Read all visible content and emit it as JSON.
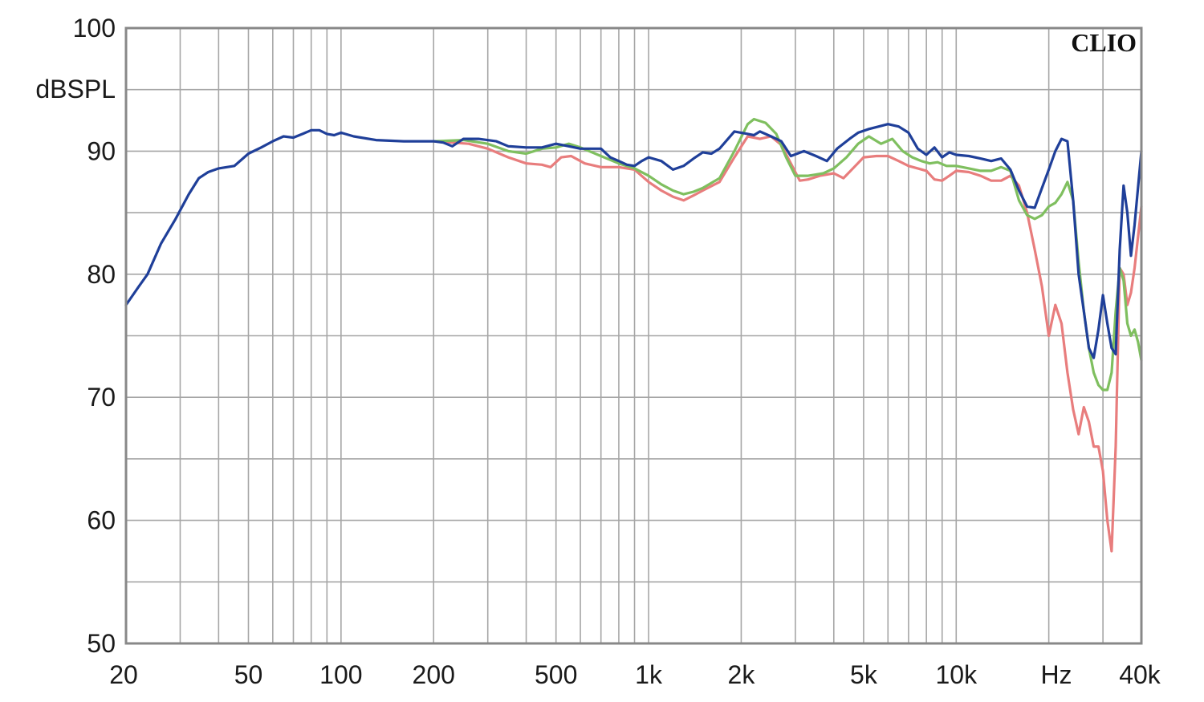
{
  "chart_data": {
    "type": "line",
    "title": "",
    "brand": "CLIO",
    "xlabel": "Hz",
    "ylabel": "dBSPL",
    "x_scale": "log",
    "xlim": [
      20,
      40000
    ],
    "ylim": [
      50,
      100
    ],
    "grid": true,
    "legend": "none",
    "x_tick_labels": [
      {
        "value": 20,
        "label": "20"
      },
      {
        "value": 50,
        "label": "50"
      },
      {
        "value": 100,
        "label": "100"
      },
      {
        "value": 200,
        "label": "200"
      },
      {
        "value": 500,
        "label": "500"
      },
      {
        "value": 1000,
        "label": "1k"
      },
      {
        "value": 2000,
        "label": "2k"
      },
      {
        "value": 5000,
        "label": "5k"
      },
      {
        "value": 10000,
        "label": "10k"
      },
      {
        "value": 40000,
        "label": "40k"
      }
    ],
    "y_tick_labels": [
      {
        "value": 100,
        "label": "100"
      },
      {
        "value": 90,
        "label": "90"
      },
      {
        "value": 80,
        "label": "80"
      },
      {
        "value": 70,
        "label": "70"
      },
      {
        "value": 60,
        "label": "60"
      },
      {
        "value": 50,
        "label": "50"
      }
    ],
    "series": [
      {
        "color": "#e87d7d",
        "points": [
          [
            200,
            90.8
          ],
          [
            230,
            90.7
          ],
          [
            260,
            90.6
          ],
          [
            300,
            90.2
          ],
          [
            350,
            89.5
          ],
          [
            400,
            89.0
          ],
          [
            450,
            88.9
          ],
          [
            480,
            88.7
          ],
          [
            520,
            89.5
          ],
          [
            560,
            89.6
          ],
          [
            620,
            89.0
          ],
          [
            700,
            88.7
          ],
          [
            800,
            88.7
          ],
          [
            900,
            88.5
          ],
          [
            1000,
            87.5
          ],
          [
            1100,
            86.8
          ],
          [
            1200,
            86.3
          ],
          [
            1300,
            86.0
          ],
          [
            1400,
            86.4
          ],
          [
            1500,
            86.8
          ],
          [
            1700,
            87.5
          ],
          [
            1900,
            89.5
          ],
          [
            2100,
            91.2
          ],
          [
            2300,
            91.0
          ],
          [
            2500,
            91.2
          ],
          [
            2700,
            90.5
          ],
          [
            2900,
            89.0
          ],
          [
            3100,
            87.6
          ],
          [
            3300,
            87.7
          ],
          [
            3600,
            88.0
          ],
          [
            4000,
            88.2
          ],
          [
            4300,
            87.8
          ],
          [
            4700,
            88.8
          ],
          [
            5000,
            89.5
          ],
          [
            5500,
            89.6
          ],
          [
            6000,
            89.6
          ],
          [
            6500,
            89.2
          ],
          [
            7000,
            88.8
          ],
          [
            7500,
            88.6
          ],
          [
            8000,
            88.4
          ],
          [
            8500,
            87.7
          ],
          [
            9000,
            87.6
          ],
          [
            9500,
            88.0
          ],
          [
            10000,
            88.4
          ],
          [
            11000,
            88.3
          ],
          [
            12000,
            88.0
          ],
          [
            13000,
            87.6
          ],
          [
            14000,
            87.6
          ],
          [
            15000,
            88.0
          ],
          [
            16000,
            87.2
          ],
          [
            17000,
            85.0
          ],
          [
            18000,
            82.0
          ],
          [
            19000,
            79.0
          ],
          [
            20000,
            75.0
          ],
          [
            21000,
            77.5
          ],
          [
            22000,
            76.0
          ],
          [
            23000,
            72.0
          ],
          [
            24000,
            69.0
          ],
          [
            25000,
            67.0
          ],
          [
            26000,
            69.2
          ],
          [
            27000,
            68.0
          ],
          [
            28000,
            66.0
          ],
          [
            29000,
            66.0
          ],
          [
            30000,
            64.0
          ],
          [
            31000,
            60.0
          ],
          [
            32000,
            57.5
          ],
          [
            33000,
            66.0
          ],
          [
            34000,
            80.5
          ],
          [
            35000,
            80.0
          ],
          [
            36000,
            77.5
          ],
          [
            37000,
            78.5
          ],
          [
            38000,
            80.5
          ],
          [
            40000,
            85.5
          ]
        ]
      },
      {
        "color": "#7fbf5f",
        "points": [
          [
            200,
            90.8
          ],
          [
            250,
            90.9
          ],
          [
            300,
            90.6
          ],
          [
            350,
            90.0
          ],
          [
            400,
            89.8
          ],
          [
            450,
            90.2
          ],
          [
            500,
            90.3
          ],
          [
            550,
            90.6
          ],
          [
            600,
            90.3
          ],
          [
            700,
            89.6
          ],
          [
            800,
            89.0
          ],
          [
            900,
            88.6
          ],
          [
            1000,
            88.0
          ],
          [
            1100,
            87.3
          ],
          [
            1200,
            86.8
          ],
          [
            1300,
            86.5
          ],
          [
            1400,
            86.7
          ],
          [
            1500,
            87.0
          ],
          [
            1700,
            87.8
          ],
          [
            1900,
            90.0
          ],
          [
            2100,
            92.2
          ],
          [
            2200,
            92.6
          ],
          [
            2400,
            92.3
          ],
          [
            2600,
            91.4
          ],
          [
            2800,
            89.5
          ],
          [
            3000,
            88.0
          ],
          [
            3300,
            88.0
          ],
          [
            3700,
            88.2
          ],
          [
            4000,
            88.6
          ],
          [
            4400,
            89.5
          ],
          [
            4800,
            90.6
          ],
          [
            5200,
            91.2
          ],
          [
            5700,
            90.6
          ],
          [
            6200,
            91.0
          ],
          [
            6700,
            90.0
          ],
          [
            7200,
            89.5
          ],
          [
            7700,
            89.2
          ],
          [
            8200,
            89.0
          ],
          [
            8700,
            89.1
          ],
          [
            9300,
            88.8
          ],
          [
            10000,
            88.8
          ],
          [
            11000,
            88.6
          ],
          [
            12000,
            88.4
          ],
          [
            13000,
            88.4
          ],
          [
            14000,
            88.7
          ],
          [
            15000,
            88.4
          ],
          [
            16000,
            86.0
          ],
          [
            17000,
            84.8
          ],
          [
            18000,
            84.5
          ],
          [
            19000,
            84.8
          ],
          [
            20000,
            85.5
          ],
          [
            21000,
            85.8
          ],
          [
            22000,
            86.5
          ],
          [
            23000,
            87.5
          ],
          [
            24000,
            86.0
          ],
          [
            25000,
            81.0
          ],
          [
            26000,
            77.0
          ],
          [
            27000,
            74.0
          ],
          [
            28000,
            72.0
          ],
          [
            29000,
            71.0
          ],
          [
            30000,
            70.6
          ],
          [
            31000,
            70.6
          ],
          [
            32000,
            72.0
          ],
          [
            33000,
            77.0
          ],
          [
            34000,
            80.5
          ],
          [
            35000,
            79.5
          ],
          [
            36000,
            76.0
          ],
          [
            37000,
            75.0
          ],
          [
            38000,
            75.5
          ],
          [
            39000,
            74.5
          ],
          [
            40000,
            73.0
          ]
        ]
      },
      {
        "color": "#1f3f99",
        "points": [
          [
            20,
            77.5
          ],
          [
            22,
            79.0
          ],
          [
            23.5,
            80.0
          ],
          [
            26,
            82.5
          ],
          [
            29,
            84.5
          ],
          [
            32,
            86.5
          ],
          [
            34.5,
            87.8
          ],
          [
            37,
            88.3
          ],
          [
            40,
            88.6
          ],
          [
            45,
            88.8
          ],
          [
            50,
            89.8
          ],
          [
            55,
            90.3
          ],
          [
            60,
            90.8
          ],
          [
            65,
            91.2
          ],
          [
            70,
            91.1
          ],
          [
            75,
            91.4
          ],
          [
            80,
            91.7
          ],
          [
            85,
            91.7
          ],
          [
            90,
            91.4
          ],
          [
            95,
            91.3
          ],
          [
            100,
            91.5
          ],
          [
            110,
            91.2
          ],
          [
            130,
            90.9
          ],
          [
            160,
            90.8
          ],
          [
            200,
            90.8
          ],
          [
            215,
            90.7
          ],
          [
            230,
            90.4
          ],
          [
            250,
            91.0
          ],
          [
            280,
            91.0
          ],
          [
            320,
            90.8
          ],
          [
            350,
            90.4
          ],
          [
            400,
            90.3
          ],
          [
            450,
            90.3
          ],
          [
            500,
            90.6
          ],
          [
            550,
            90.4
          ],
          [
            600,
            90.2
          ],
          [
            700,
            90.2
          ],
          [
            750,
            89.5
          ],
          [
            800,
            89.2
          ],
          [
            850,
            88.9
          ],
          [
            900,
            88.8
          ],
          [
            950,
            89.2
          ],
          [
            1000,
            89.5
          ],
          [
            1100,
            89.2
          ],
          [
            1200,
            88.5
          ],
          [
            1300,
            88.8
          ],
          [
            1400,
            89.4
          ],
          [
            1500,
            89.9
          ],
          [
            1600,
            89.8
          ],
          [
            1700,
            90.2
          ],
          [
            1900,
            91.6
          ],
          [
            2100,
            91.4
          ],
          [
            2200,
            91.3
          ],
          [
            2300,
            91.6
          ],
          [
            2500,
            91.2
          ],
          [
            2700,
            90.8
          ],
          [
            2900,
            89.6
          ],
          [
            3200,
            90.0
          ],
          [
            3500,
            89.6
          ],
          [
            3800,
            89.2
          ],
          [
            4100,
            90.2
          ],
          [
            4500,
            91.0
          ],
          [
            4800,
            91.5
          ],
          [
            5200,
            91.8
          ],
          [
            5600,
            92.0
          ],
          [
            6000,
            92.2
          ],
          [
            6500,
            92.0
          ],
          [
            7000,
            91.5
          ],
          [
            7500,
            90.2
          ],
          [
            8000,
            89.7
          ],
          [
            8500,
            90.3
          ],
          [
            9000,
            89.5
          ],
          [
            9500,
            89.9
          ],
          [
            10000,
            89.7
          ],
          [
            11000,
            89.6
          ],
          [
            12000,
            89.4
          ],
          [
            13000,
            89.2
          ],
          [
            14000,
            89.4
          ],
          [
            15000,
            88.5
          ],
          [
            16000,
            86.8
          ],
          [
            17000,
            85.5
          ],
          [
            18000,
            85.4
          ],
          [
            19000,
            87.0
          ],
          [
            20000,
            88.5
          ],
          [
            21000,
            90.0
          ],
          [
            22000,
            91.0
          ],
          [
            23000,
            90.8
          ],
          [
            24000,
            86.0
          ],
          [
            25000,
            80.0
          ],
          [
            26000,
            77.0
          ],
          [
            27000,
            74.0
          ],
          [
            28000,
            73.2
          ],
          [
            29000,
            75.5
          ],
          [
            30000,
            78.3
          ],
          [
            31000,
            76.0
          ],
          [
            32000,
            74.0
          ],
          [
            33000,
            73.5
          ],
          [
            34000,
            82.0
          ],
          [
            35000,
            87.2
          ],
          [
            36000,
            85.0
          ],
          [
            37000,
            81.5
          ],
          [
            38000,
            84.0
          ],
          [
            40000,
            90.0
          ]
        ]
      }
    ]
  }
}
